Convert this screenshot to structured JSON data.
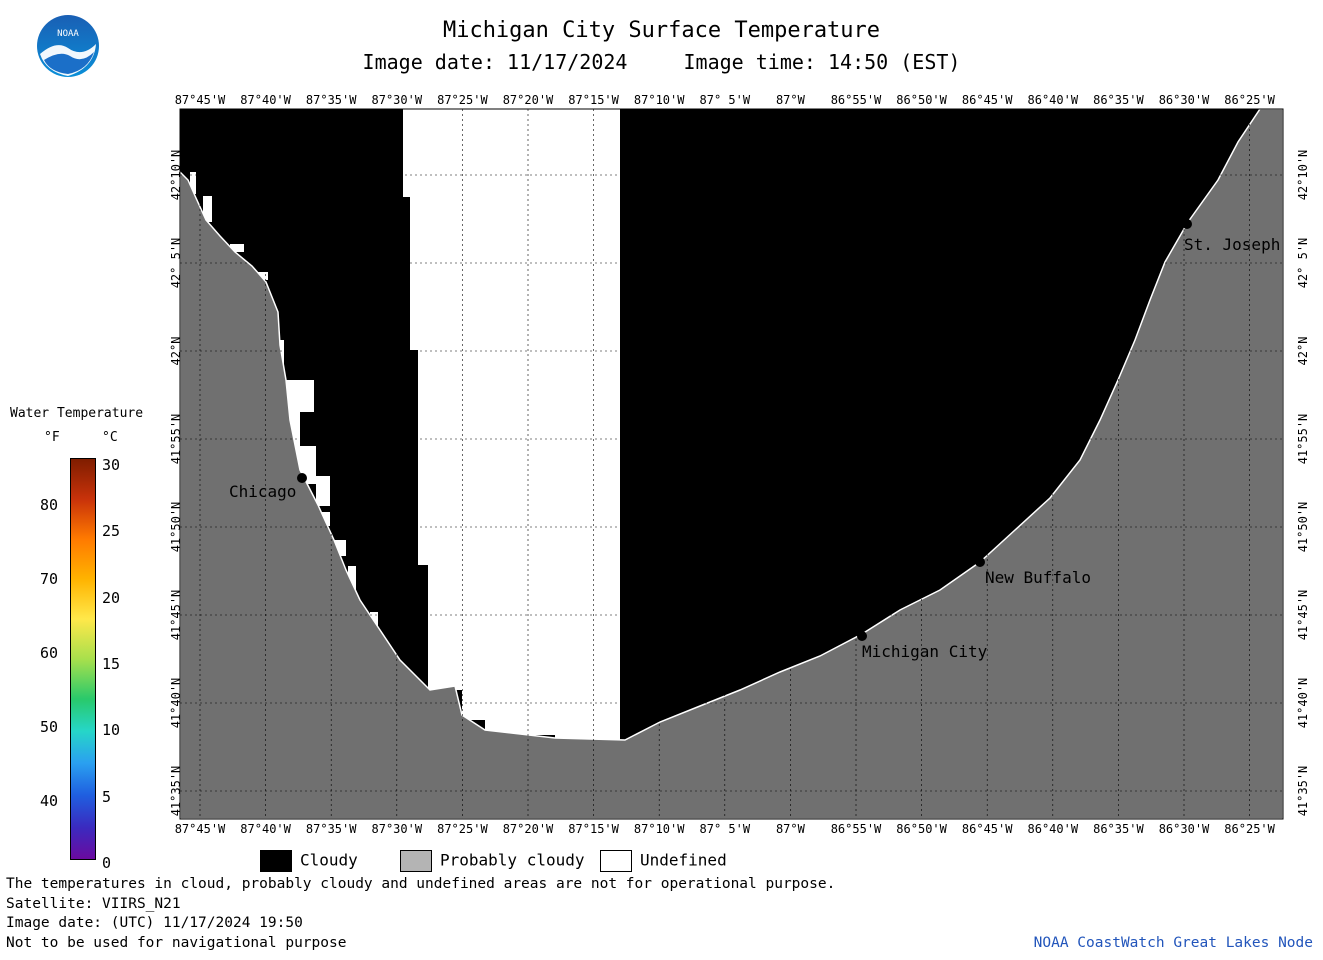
{
  "title": "Michigan City Surface Temperature",
  "image_date": "Image date: 11/17/2024",
  "image_time": "Image time: 14:50 (EST)",
  "logo_text": "NOAA",
  "longitude_labels": [
    "87°45'W",
    "87°40'W",
    "87°35'W",
    "87°30'W",
    "87°25'W",
    "87°20'W",
    "87°15'W",
    "87°10'W",
    "87° 5'W",
    "87°W",
    "86°55'W",
    "86°50'W",
    "86°45'W",
    "86°40'W",
    "86°35'W",
    "86°30'W",
    "86°25'W"
  ],
  "latitude_labels": [
    "42°10'N",
    "42° 5'N",
    "42°N",
    "41°55'N",
    "41°50'N",
    "41°45'N",
    "41°40'N",
    "41°35'N"
  ],
  "cities": [
    {
      "name": "Chicago"
    },
    {
      "name": "Michigan City"
    },
    {
      "name": "New Buffalo"
    },
    {
      "name": "St. Joseph"
    }
  ],
  "scale": {
    "title": "Water Temperature",
    "f_unit": "°F",
    "c_unit": "°C",
    "f_ticks": [
      "80",
      "70",
      "60",
      "50",
      "40"
    ],
    "c_ticks": [
      "30",
      "25",
      "20",
      "15",
      "10",
      "5",
      "0"
    ]
  },
  "legend": [
    {
      "label": "Cloudy",
      "color": "#000000"
    },
    {
      "label": "Probably cloudy",
      "color": "#b4b4b4"
    },
    {
      "label": "Undefined",
      "color": "#ffffff"
    }
  ],
  "colors": {
    "land": "#707070",
    "cloudy": "#000000",
    "undefined": "#ffffff",
    "credit": "#2255bb"
  },
  "footer": {
    "note": "The temperatures in cloud, probably cloudy and undefined areas are not for operational purpose.",
    "satellite": "Satellite: VIIRS_N21",
    "utc_date": "Image date: (UTC) 11/17/2024  19:50",
    "nav": "Not to be used for navigational purpose",
    "credit": "NOAA CoastWatch Great Lakes Node"
  }
}
